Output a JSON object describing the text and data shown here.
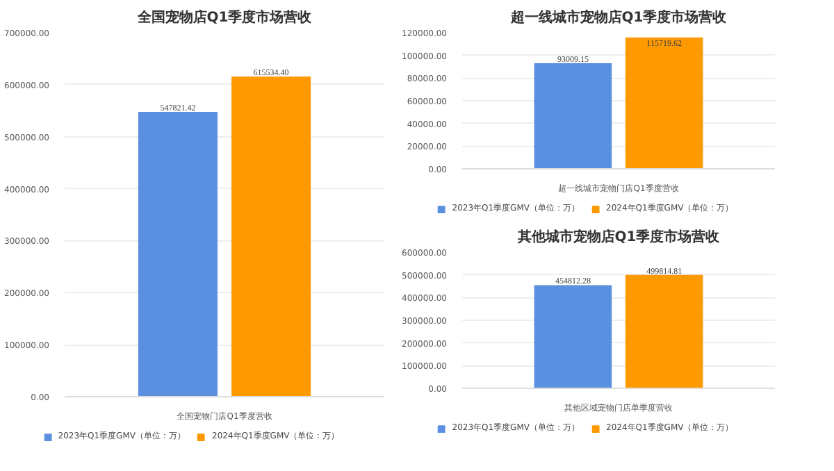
{
  "chart_data": [
    {
      "type": "bar",
      "title": "全国宠物店Q1季度市场营收",
      "categories": [
        "全国宠物门店Q1季度营收"
      ],
      "series": [
        {
          "name": "2023年Q1季度GMV（单位：万）",
          "color": "#5b8fe0",
          "values": [
            547821.42
          ],
          "value_labels": [
            "547821.42"
          ]
        },
        {
          "name": "2024年Q1季度GMV（单位：万）",
          "color": "#ff9900",
          "values": [
            615534.4
          ],
          "value_labels": [
            "615534.40"
          ]
        }
      ],
      "ylim": [
        0,
        700000
      ],
      "yticks": [
        {
          "value": 0,
          "label": "0.00"
        },
        {
          "value": 100000,
          "label": "100000.00"
        },
        {
          "value": 200000,
          "label": "200000.00"
        },
        {
          "value": 300000,
          "label": "300000.00"
        },
        {
          "value": 400000,
          "label": "400000.00"
        },
        {
          "value": 500000,
          "label": "500000.00"
        },
        {
          "value": 600000,
          "label": "600000.00"
        },
        {
          "value": 700000,
          "label": "700000.00"
        }
      ],
      "grid": "y",
      "legend": "bottom"
    },
    {
      "type": "bar",
      "title": "超一线城市宠物店Q1季度市场营收",
      "categories": [
        "超一线城市宠物门店Q1季度营收"
      ],
      "series": [
        {
          "name": "2023年Q1季度GMV（单位：万）",
          "color": "#5b8fe0",
          "values": [
            93009.15
          ],
          "value_labels": [
            "93009.15"
          ]
        },
        {
          "name": "2024年Q1季度GMV（单位：万）",
          "color": "#ff9900",
          "values": [
            115719.62
          ],
          "value_labels": [
            "115719.62"
          ]
        }
      ],
      "ylim": [
        0,
        120000
      ],
      "yticks": [
        {
          "value": 0,
          "label": "0.00"
        },
        {
          "value": 20000,
          "label": "20000.00"
        },
        {
          "value": 40000,
          "label": "40000.00"
        },
        {
          "value": 60000,
          "label": "60000.00"
        },
        {
          "value": 80000,
          "label": "80000.00"
        },
        {
          "value": 100000,
          "label": "100000.00"
        },
        {
          "value": 120000,
          "label": "120000.00"
        }
      ],
      "grid": "y",
      "legend": "bottom"
    },
    {
      "type": "bar",
      "title": "其他城市宠物店Q1季度市场营收",
      "categories": [
        "其他区域宠物门店单季度营收"
      ],
      "series": [
        {
          "name": "2023年Q1季度GMV（单位：万）",
          "color": "#5b8fe0",
          "values": [
            454812.28
          ],
          "value_labels": [
            "454812.28"
          ]
        },
        {
          "name": "2024年Q1季度GMV（单位：万）",
          "color": "#ff9900",
          "values": [
            499814.81
          ],
          "value_labels": [
            "499814.81"
          ]
        }
      ],
      "ylim": [
        0,
        600000
      ],
      "yticks": [
        {
          "value": 0,
          "label": "0.00"
        },
        {
          "value": 100000,
          "label": "100000.00"
        },
        {
          "value": 200000,
          "label": "200000.00"
        },
        {
          "value": 300000,
          "label": "300000.00"
        },
        {
          "value": 400000,
          "label": "400000.00"
        },
        {
          "value": 500000,
          "label": "500000.00"
        },
        {
          "value": 600000,
          "label": "600000.00"
        }
      ],
      "grid": "y",
      "legend": "bottom"
    }
  ]
}
